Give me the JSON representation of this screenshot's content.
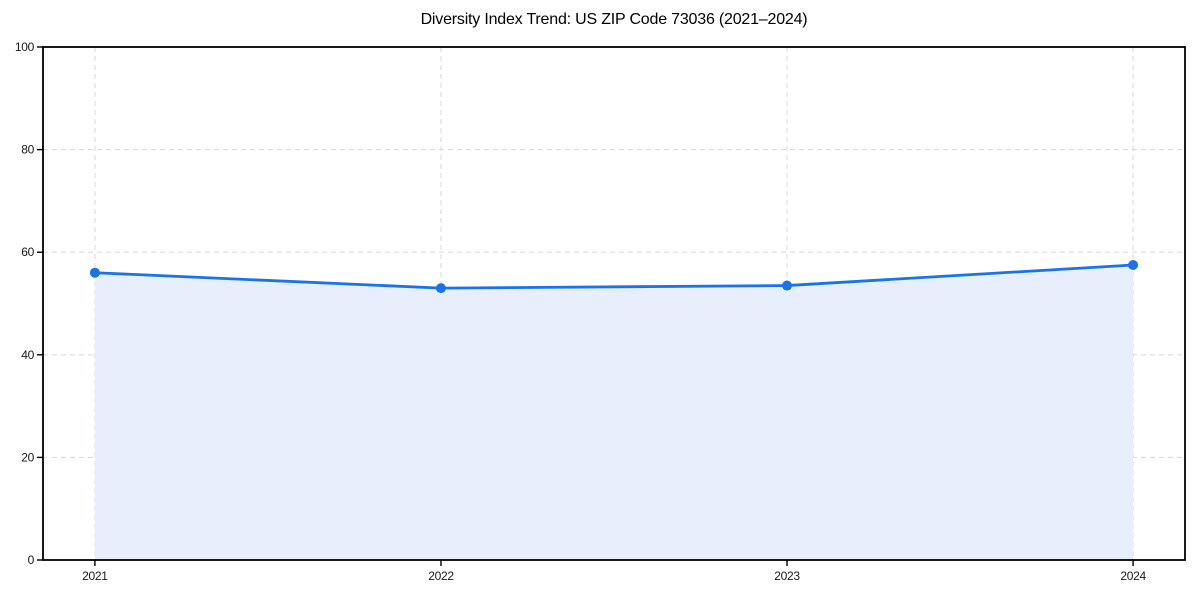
{
  "title": "Diversity Index Trend: US ZIP Code 73036 (2021–2024)",
  "chart_data": {
    "type": "area",
    "title": "Diversity Index Trend: US ZIP Code 73036 (2021–2024)",
    "categories": [
      "2021",
      "2022",
      "2023",
      "2024"
    ],
    "x": [
      2021,
      2022,
      2023,
      2024
    ],
    "series": [
      {
        "name": "Diversity Index",
        "values": [
          56,
          53,
          53.5,
          57.5
        ]
      }
    ],
    "xlabel": "",
    "ylabel": "",
    "ylim": [
      0,
      100
    ],
    "yticks": [
      0,
      20,
      40,
      60,
      80,
      100
    ],
    "xticks": [
      "2021",
      "2022",
      "2023",
      "2024"
    ],
    "x_margin_fraction": 0.05,
    "grid": "both",
    "grid_style": "dashed",
    "legend_position": "none",
    "marker": "circle",
    "colors": {
      "line": "#1a73e8",
      "marker": "#1a73e8",
      "fill": "#e7effc",
      "grid": "#dcdcdc",
      "spine": "#000000",
      "tick": "#000000",
      "tick_label": "#1a1a1a",
      "title": "#000000",
      "background": "#ffffff"
    }
  }
}
